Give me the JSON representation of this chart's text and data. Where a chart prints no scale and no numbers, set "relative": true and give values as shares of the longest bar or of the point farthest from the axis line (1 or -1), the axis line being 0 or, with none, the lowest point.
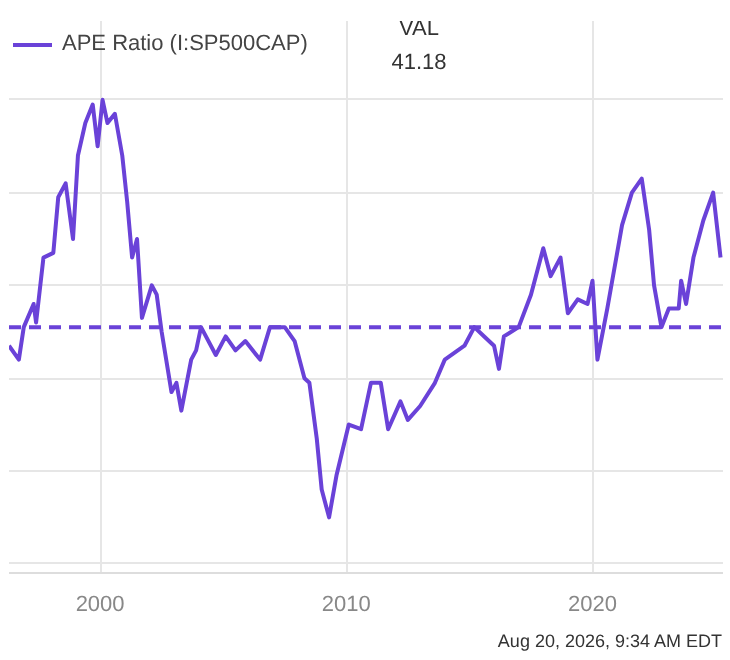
{
  "chart_data": {
    "type": "line",
    "relative": true,
    "xlim": [
      1996.3,
      2025.3
    ],
    "xticks": [
      2000,
      2010,
      2020
    ],
    "grid": true,
    "legend": "top left",
    "annotations": [
      "VAL",
      "41.18",
      "Aug 20, 2026, 9:34 AM EDT"
    ],
    "ref_lines": [
      {
        "axis": "y",
        "value": 0.51,
        "color": "#6a42d8",
        "line_style": "dashed"
      }
    ],
    "series": [
      {
        "name": "APE Ratio (I:SP500CAP)",
        "color": "#6a42d8",
        "x": [
          1996.3,
          1996.7,
          1996.9,
          1997.3,
          1997.4,
          1997.7,
          1998.1,
          1998.3,
          1998.6,
          1998.9,
          1999.1,
          1999.4,
          1999.7,
          1999.9,
          2000.1,
          2000.3,
          2000.6,
          2000.9,
          2001.1,
          2001.3,
          2001.5,
          2001.7,
          2002.1,
          2002.3,
          2002.5,
          2002.9,
          2003.1,
          2003.3,
          2003.7,
          2003.9,
          2004.1,
          2004.7,
          2005.1,
          2005.5,
          2005.9,
          2006.5,
          2006.9,
          2007.5,
          2007.9,
          2008.3,
          2008.5,
          2008.8,
          2009.0,
          2009.3,
          2009.6,
          2010.1,
          2010.6,
          2011.0,
          2011.4,
          2011.7,
          2012.2,
          2012.5,
          2013.0,
          2013.6,
          2014.0,
          2014.8,
          2015.2,
          2015.6,
          2016.0,
          2016.2,
          2016.4,
          2017.0,
          2017.5,
          2018.0,
          2018.3,
          2018.7,
          2019.0,
          2019.4,
          2019.8,
          2020.0,
          2020.2,
          2020.6,
          2020.8,
          2021.2,
          2021.6,
          2022.0,
          2022.3,
          2022.5,
          2022.8,
          2023.1,
          2023.5,
          2023.6,
          2023.8,
          2024.1,
          2024.5,
          2024.9,
          2025.2
        ],
        "values": [
          0.47,
          0.44,
          0.51,
          0.56,
          0.52,
          0.66,
          0.67,
          0.79,
          0.82,
          0.7,
          0.88,
          0.95,
          0.99,
          0.9,
          1.0,
          0.95,
          0.97,
          0.88,
          0.78,
          0.66,
          0.7,
          0.53,
          0.6,
          0.58,
          0.5,
          0.37,
          0.39,
          0.33,
          0.44,
          0.46,
          0.51,
          0.45,
          0.49,
          0.46,
          0.48,
          0.44,
          0.51,
          0.51,
          0.48,
          0.4,
          0.39,
          0.27,
          0.16,
          0.1,
          0.19,
          0.3,
          0.29,
          0.39,
          0.39,
          0.29,
          0.35,
          0.31,
          0.34,
          0.39,
          0.44,
          0.47,
          0.51,
          0.49,
          0.47,
          0.42,
          0.49,
          0.51,
          0.58,
          0.68,
          0.62,
          0.66,
          0.54,
          0.57,
          0.56,
          0.61,
          0.44,
          0.55,
          0.61,
          0.73,
          0.8,
          0.83,
          0.72,
          0.6,
          0.51,
          0.55,
          0.55,
          0.61,
          0.56,
          0.66,
          0.74,
          0.8,
          0.66
        ]
      }
    ]
  }
}
